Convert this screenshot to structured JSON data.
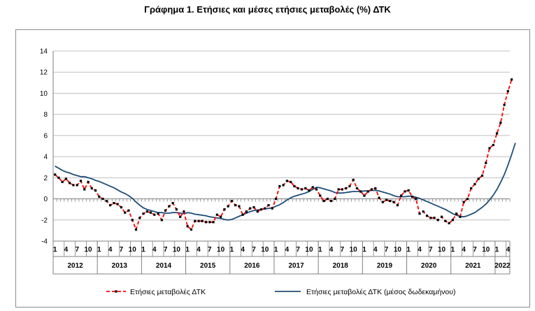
{
  "chart_data": {
    "type": "line",
    "title": "Γράφημα 1. Ετήσιες και μέσες ετήσιες μεταβολές (%) ΔΤΚ",
    "ylim": [
      -4,
      14
    ],
    "yticks": [
      -4,
      -2,
      0,
      2,
      4,
      6,
      8,
      10,
      12,
      14
    ],
    "grid": true,
    "legend_position": "bottom",
    "month_tick_labels": [
      "1",
      "4",
      "7",
      "10"
    ],
    "years": [
      "2012",
      "2013",
      "2014",
      "2015",
      "2016",
      "2017",
      "2018",
      "2019",
      "2020",
      "2021",
      "2022"
    ],
    "x_start": "2012-01",
    "series": [
      {
        "name": "Ετήσιες μεταβολές ΔΤΚ",
        "color": "#ff0000",
        "marker_color": "#000000",
        "style": "dashed-with-square-markers",
        "values": [
          2.3,
          2.0,
          1.6,
          1.9,
          1.5,
          1.3,
          1.3,
          1.7,
          0.9,
          1.6,
          1.0,
          0.8,
          0.2,
          0.0,
          -0.2,
          -0.6,
          -0.4,
          -0.5,
          -0.8,
          -1.3,
          -1.1,
          -2.0,
          -2.9,
          -1.8,
          -1.4,
          -1.2,
          -1.3,
          -1.5,
          -1.4,
          -2.0,
          -1.1,
          -0.7,
          -0.4,
          -1.0,
          -1.7,
          -1.2,
          -2.6,
          -2.9,
          -2.1,
          -2.1,
          -2.1,
          -2.2,
          -2.2,
          -2.2,
          -1.5,
          -1.7,
          -1.0,
          -0.7,
          -0.2,
          -0.6,
          -0.7,
          -1.5,
          -1.2,
          -0.9,
          -0.8,
          -1.2,
          -1.0,
          -0.9,
          -0.6,
          -0.9,
          0.0,
          1.2,
          1.3,
          1.7,
          1.6,
          1.2,
          1.0,
          0.9,
          1.0,
          0.8,
          1.1,
          0.9,
          0.3,
          -0.2,
          0.0,
          -0.2,
          0.0,
          0.9,
          0.9,
          1.0,
          1.2,
          1.8,
          1.0,
          0.7,
          0.3,
          0.7,
          0.9,
          1.0,
          0.1,
          -0.3,
          -0.1,
          -0.2,
          -0.3,
          -0.6,
          0.3,
          0.7,
          0.8,
          0.2,
          0.0,
          -1.4,
          -1.2,
          -1.6,
          -1.8,
          -1.8,
          -2.0,
          -1.7,
          -2.1,
          -2.3,
          -2.0,
          -1.4,
          -1.7,
          -0.3,
          0.0,
          1.0,
          1.4,
          1.9,
          2.2,
          3.4,
          4.8,
          5.1,
          6.2,
          7.2,
          8.9,
          10.2,
          11.3
        ]
      },
      {
        "name": "Ετήσιες μεταβολές ΔΤΚ (μέσος δωδεκαμήνου)",
        "color": "#1f4e79",
        "style": "solid",
        "values": [
          3.1,
          2.9,
          2.7,
          2.55,
          2.45,
          2.3,
          2.2,
          2.1,
          2.1,
          2.0,
          1.9,
          1.75,
          1.65,
          1.5,
          1.35,
          1.2,
          1.05,
          0.85,
          0.65,
          0.5,
          0.3,
          0.05,
          -0.3,
          -0.6,
          -0.85,
          -1.0,
          -1.1,
          -1.2,
          -1.3,
          -1.3,
          -1.35,
          -1.35,
          -1.3,
          -1.3,
          -1.35,
          -1.4,
          -1.3,
          -1.35,
          -1.45,
          -1.5,
          -1.55,
          -1.6,
          -1.7,
          -1.75,
          -1.8,
          -1.85,
          -1.95,
          -2.0,
          -1.95,
          -1.8,
          -1.65,
          -1.5,
          -1.35,
          -1.2,
          -1.1,
          -1.05,
          -1.0,
          -0.95,
          -0.9,
          -0.85,
          -0.7,
          -0.55,
          -0.35,
          -0.1,
          0.1,
          0.25,
          0.35,
          0.45,
          0.55,
          0.7,
          0.9,
          1.1,
          1.05,
          0.95,
          0.85,
          0.75,
          0.6,
          0.55,
          0.55,
          0.6,
          0.65,
          0.7,
          0.7,
          0.7,
          0.75,
          0.75,
          0.8,
          0.8,
          0.75,
          0.65,
          0.55,
          0.45,
          0.3,
          0.2,
          0.2,
          0.2,
          0.25,
          0.25,
          0.15,
          0.05,
          -0.1,
          -0.25,
          -0.4,
          -0.55,
          -0.7,
          -0.85,
          -1.0,
          -1.2,
          -1.4,
          -1.55,
          -1.65,
          -1.7,
          -1.6,
          -1.45,
          -1.3,
          -1.05,
          -0.8,
          -0.5,
          -0.1,
          0.35,
          0.9,
          1.55,
          2.3,
          3.2,
          4.2,
          5.3
        ]
      }
    ]
  }
}
